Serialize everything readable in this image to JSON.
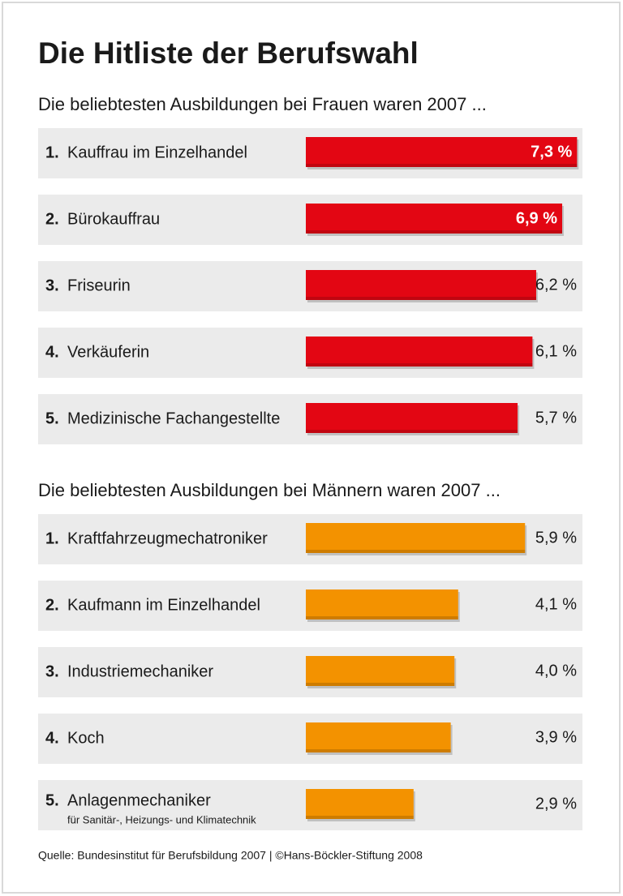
{
  "title": "Die Hitliste der Berufswahl",
  "source": "Quelle: Bundesinstitut für Berufsbildung 2007 | ©Hans-Böckler-Stiftung 2008",
  "chart_data": [
    {
      "type": "bar",
      "subtitle": "Die beliebtesten Ausbildungen bei Frauen waren 2007 ...",
      "ranks": [
        "1.",
        "2.",
        "3.",
        "4.",
        "5."
      ],
      "categories": [
        "Kauffrau im Einzelhandel",
        "Bürokauffrau",
        "Friseurin",
        "Verkäuferin",
        "Medizinische Fachangestellte"
      ],
      "notes": [
        null,
        null,
        null,
        null,
        null
      ],
      "values": [
        7.3,
        6.9,
        6.2,
        6.1,
        5.7
      ],
      "value_labels": [
        "7,3 %",
        "6,9 %",
        "6,2 %",
        "6,1 %",
        "5,7 %"
      ],
      "color": "#e30613"
    },
    {
      "type": "bar",
      "subtitle": "Die beliebtesten Ausbildungen bei Männern waren 2007 ...",
      "ranks": [
        "1.",
        "2.",
        "3.",
        "4.",
        "5."
      ],
      "categories": [
        "Kraftfahrzeugmechatroniker",
        "Kaufmann im Einzelhandel",
        "Industriemechaniker",
        "Koch",
        "Anlagenmechaniker"
      ],
      "notes": [
        null,
        null,
        null,
        null,
        "für Sanitär-, Heizungs- und Klimatechnik"
      ],
      "values": [
        5.9,
        4.1,
        4.0,
        3.9,
        2.9
      ],
      "value_labels": [
        "5,9 %",
        "4,1 %",
        "4,0 %",
        "3,9 %",
        "2,9 %"
      ],
      "color": "#f39200"
    }
  ]
}
